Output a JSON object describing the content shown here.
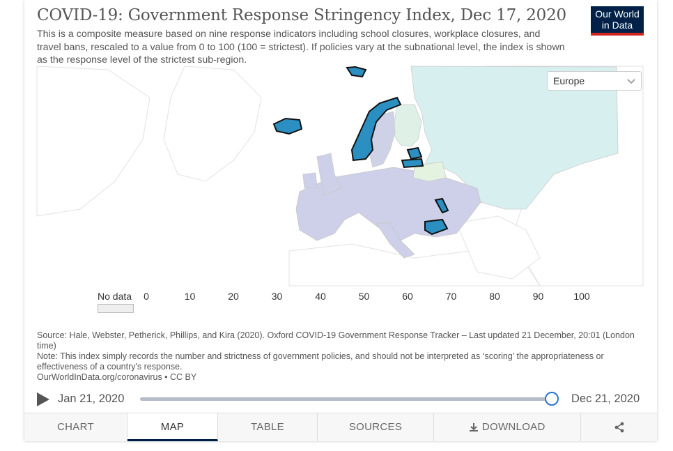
{
  "title": "COVID-19: Government Response Stringency Index, Dec 17, 2020",
  "subtitle": "This is a composite measure based on nine response indicators including school closures, workplace closures, and travel bans, rescaled to a value from 0 to 100 (100 = strictest). If policies vary at the subnational level, the index is shown as the response level of the strictest sub-region.",
  "logo": {
    "line1": "Our World",
    "line2": "in Data"
  },
  "region_select": {
    "selected": "Europe",
    "icon": "chevron-down-icon"
  },
  "legend": {
    "no_data_label": "No data",
    "ticks": [
      "0",
      "10",
      "20",
      "30",
      "40",
      "50",
      "60",
      "70",
      "80",
      "90",
      "100"
    ],
    "colors": [
      "#ffffcc",
      "#e7f5b4",
      "#c7e9b4",
      "#7fcdbb",
      "#41b6c4",
      "#2a8fc0",
      "#225ea8",
      "#253494",
      "#1b2778",
      "#081d58"
    ],
    "highlighted_bin": "50-60",
    "no_data_color": "#eeeeee"
  },
  "map": {
    "countries": [
      {
        "name": "Norway",
        "bin": "50-60",
        "highlighted": true
      },
      {
        "name": "Iceland",
        "bin": "50-60",
        "highlighted": true
      },
      {
        "name": "Svalbard",
        "bin": "50-60",
        "highlighted": true
      },
      {
        "name": "Estonia",
        "bin": "50-60",
        "highlighted": true
      },
      {
        "name": "Latvia",
        "bin": "50-60",
        "highlighted": true
      },
      {
        "name": "Moldova",
        "bin": "50-60",
        "highlighted": true
      },
      {
        "name": "Bulgaria",
        "bin": "50-60",
        "highlighted": true
      },
      {
        "name": "Russia",
        "bin": "30-40"
      },
      {
        "name": "Finland",
        "bin": "30-40"
      },
      {
        "name": "Belarus",
        "bin": "30-40"
      }
    ]
  },
  "source": {
    "line1": "Source: Hale, Webster, Petherick, Phillips, and Kira (2020). Oxford COVID-19 Government Response Tracker – Last updated 21 December, 20:01 (London time)",
    "line2": "Note: This index simply records the number and strictness of government policies, and should not be interpreted as ‘scoring’ the appropriateness or effectiveness of a country's response.",
    "line3": "OurWorldInData.org/coronavirus • CC BY"
  },
  "timeline": {
    "start": "Jan 21, 2020",
    "end": "Dec 21, 2020",
    "position": 1.0
  },
  "tabs": [
    {
      "label": "CHART",
      "active": false
    },
    {
      "label": "MAP",
      "active": true
    },
    {
      "label": "TABLE",
      "active": false
    },
    {
      "label": "SOURCES",
      "active": false
    },
    {
      "label": "DOWNLOAD",
      "active": false,
      "icon": "download-icon"
    },
    {
      "label": "",
      "active": false,
      "icon": "share-icon"
    }
  ]
}
